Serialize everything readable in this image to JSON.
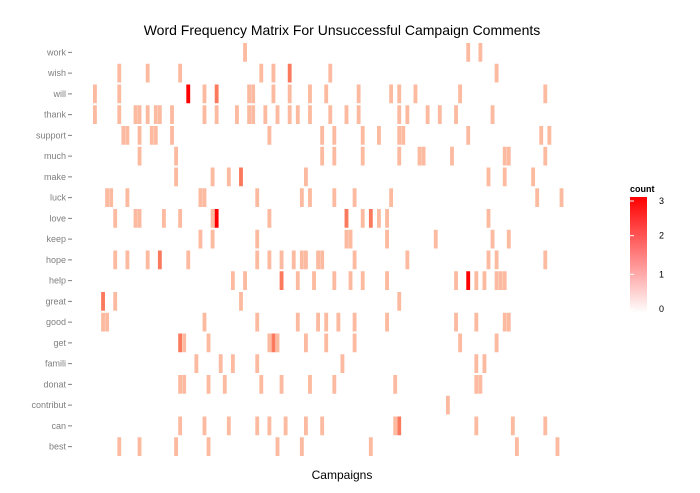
{
  "chart_data": {
    "type": "heatmap",
    "title": "Word Frequency Matrix For Unsuccessful Campaign Comments",
    "xlabel": "Campaigns",
    "ylabel": "",
    "rows": [
      "work",
      "wish",
      "will",
      "thank",
      "support",
      "much",
      "make",
      "luck",
      "love",
      "keep",
      "hope",
      "help",
      "great",
      "good",
      "get",
      "famili",
      "donat",
      "contribut",
      "can",
      "best"
    ],
    "n_campaigns": 122,
    "fill_scale": {
      "low": "#ffffff",
      "high": "#ff0000",
      "min": 0,
      "max": 3
    },
    "legend": {
      "title": "count",
      "ticks": [
        0,
        1,
        2,
        3
      ],
      "position": "right"
    },
    "cells": {
      "work": [
        [
          37,
          1
        ],
        [
          92,
          1
        ],
        [
          95,
          1
        ]
      ],
      "wish": [
        [
          6,
          1
        ],
        [
          13,
          1
        ],
        [
          21,
          1
        ],
        [
          41,
          1
        ],
        [
          44,
          1
        ],
        [
          48,
          2
        ],
        [
          58,
          1
        ],
        [
          99,
          1
        ]
      ],
      "will": [
        [
          0,
          1
        ],
        [
          6,
          1
        ],
        [
          23,
          3
        ],
        [
          27,
          1
        ],
        [
          30,
          2
        ],
        [
          38,
          1
        ],
        [
          39,
          1
        ],
        [
          44,
          1
        ],
        [
          48,
          1
        ],
        [
          53,
          1
        ],
        [
          57,
          1
        ],
        [
          65,
          1
        ],
        [
          73,
          1
        ],
        [
          75,
          1
        ],
        [
          79,
          1
        ],
        [
          90,
          1
        ],
        [
          111,
          1
        ]
      ],
      "thank": [
        [
          0,
          1
        ],
        [
          6,
          1
        ],
        [
          10,
          1
        ],
        [
          11,
          1
        ],
        [
          13,
          1
        ],
        [
          15,
          1
        ],
        [
          16,
          1
        ],
        [
          19,
          1
        ],
        [
          27,
          1
        ],
        [
          30,
          1
        ],
        [
          35,
          1
        ],
        [
          38,
          1
        ],
        [
          39,
          1
        ],
        [
          42,
          1
        ],
        [
          45,
          1
        ],
        [
          48,
          1
        ],
        [
          50,
          1
        ],
        [
          53,
          1
        ],
        [
          58,
          1
        ],
        [
          62,
          1
        ],
        [
          65,
          1
        ],
        [
          75,
          1
        ],
        [
          77,
          1
        ],
        [
          82,
          1
        ],
        [
          85,
          1
        ],
        [
          89,
          1
        ],
        [
          98,
          1
        ]
      ],
      "support": [
        [
          7,
          1
        ],
        [
          8,
          1
        ],
        [
          11,
          1
        ],
        [
          14,
          1
        ],
        [
          15,
          1
        ],
        [
          19,
          1
        ],
        [
          43,
          1
        ],
        [
          56,
          1
        ],
        [
          59,
          1
        ],
        [
          66,
          1
        ],
        [
          70,
          1
        ],
        [
          75,
          1
        ],
        [
          76,
          1
        ],
        [
          92,
          1
        ],
        [
          110,
          1
        ],
        [
          112,
          1
        ]
      ],
      "much": [
        [
          11,
          1
        ],
        [
          20,
          1
        ],
        [
          56,
          1
        ],
        [
          59,
          1
        ],
        [
          66,
          1
        ],
        [
          75,
          1
        ],
        [
          80,
          1
        ],
        [
          81,
          1
        ],
        [
          88,
          1
        ],
        [
          101,
          1
        ],
        [
          102,
          1
        ],
        [
          111,
          1
        ]
      ],
      "make": [
        [
          20,
          1
        ],
        [
          29,
          1
        ],
        [
          33,
          1
        ],
        [
          36,
          2
        ],
        [
          52,
          1
        ],
        [
          97,
          1
        ],
        [
          101,
          1
        ],
        [
          108,
          1
        ]
      ],
      "luck": [
        [
          3,
          1
        ],
        [
          4,
          1
        ],
        [
          8,
          1
        ],
        [
          26,
          1
        ],
        [
          27,
          1
        ],
        [
          40,
          1
        ],
        [
          51,
          1
        ],
        [
          53,
          1
        ],
        [
          59,
          1
        ],
        [
          64,
          1
        ],
        [
          73,
          1
        ],
        [
          109,
          1
        ],
        [
          115,
          1
        ]
      ],
      "love": [
        [
          5,
          1
        ],
        [
          10,
          1
        ],
        [
          11,
          1
        ],
        [
          17,
          1
        ],
        [
          21,
          1
        ],
        [
          29,
          1
        ],
        [
          30,
          3
        ],
        [
          43,
          1
        ],
        [
          62,
          2
        ],
        [
          66,
          1
        ],
        [
          68,
          2
        ],
        [
          70,
          1
        ],
        [
          72,
          1
        ],
        [
          97,
          1
        ]
      ],
      "keep": [
        [
          26,
          1
        ],
        [
          29,
          1
        ],
        [
          40,
          1
        ],
        [
          62,
          1
        ],
        [
          63,
          1
        ],
        [
          72,
          1
        ],
        [
          84,
          1
        ],
        [
          98,
          1
        ],
        [
          102,
          1
        ]
      ],
      "hope": [
        [
          5,
          1
        ],
        [
          8,
          1
        ],
        [
          13,
          1
        ],
        [
          16,
          2
        ],
        [
          23,
          1
        ],
        [
          40,
          1
        ],
        [
          43,
          1
        ],
        [
          46,
          1
        ],
        [
          49,
          1
        ],
        [
          51,
          1
        ],
        [
          52,
          1
        ],
        [
          55,
          1
        ],
        [
          56,
          1
        ],
        [
          64,
          1
        ],
        [
          77,
          1
        ],
        [
          97,
          1
        ],
        [
          99,
          1
        ],
        [
          111,
          1
        ]
      ],
      "help": [
        [
          34,
          1
        ],
        [
          37,
          1
        ],
        [
          46,
          2
        ],
        [
          50,
          1
        ],
        [
          54,
          1
        ],
        [
          59,
          1
        ],
        [
          63,
          1
        ],
        [
          66,
          1
        ],
        [
          72,
          1
        ],
        [
          89,
          1
        ],
        [
          92,
          3
        ],
        [
          94,
          1
        ],
        [
          96,
          1
        ],
        [
          99,
          1
        ],
        [
          100,
          1
        ],
        [
          101,
          1
        ]
      ],
      "great": [
        [
          2,
          2
        ],
        [
          5,
          1
        ],
        [
          36,
          1
        ],
        [
          75,
          1
        ]
      ],
      "good": [
        [
          2,
          1
        ],
        [
          3,
          1
        ],
        [
          27,
          1
        ],
        [
          40,
          1
        ],
        [
          50,
          1
        ],
        [
          55,
          1
        ],
        [
          57,
          1
        ],
        [
          60,
          1
        ],
        [
          64,
          1
        ],
        [
          72,
          1
        ],
        [
          89,
          1
        ],
        [
          94,
          1
        ],
        [
          101,
          1
        ],
        [
          102,
          1
        ]
      ],
      "get": [
        [
          21,
          2
        ],
        [
          22,
          1
        ],
        [
          28,
          1
        ],
        [
          43,
          1
        ],
        [
          44,
          2
        ],
        [
          45,
          1
        ],
        [
          52,
          1
        ],
        [
          57,
          1
        ],
        [
          64,
          1
        ],
        [
          90,
          1
        ],
        [
          99,
          1
        ]
      ],
      "famili": [
        [
          25,
          1
        ],
        [
          31,
          1
        ],
        [
          34,
          1
        ],
        [
          40,
          1
        ],
        [
          61,
          1
        ],
        [
          94,
          1
        ],
        [
          96,
          1
        ]
      ],
      "donat": [
        [
          21,
          1
        ],
        [
          22,
          1
        ],
        [
          28,
          1
        ],
        [
          32,
          1
        ],
        [
          41,
          1
        ],
        [
          46,
          1
        ],
        [
          53,
          1
        ],
        [
          59,
          1
        ],
        [
          74,
          1
        ],
        [
          94,
          1
        ],
        [
          95,
          1
        ]
      ],
      "contribut": [
        [
          87,
          1
        ]
      ],
      "can": [
        [
          21,
          1
        ],
        [
          27,
          1
        ],
        [
          33,
          1
        ],
        [
          40,
          1
        ],
        [
          43,
          1
        ],
        [
          47,
          1
        ],
        [
          52,
          1
        ],
        [
          56,
          1
        ],
        [
          74,
          1
        ],
        [
          75,
          2
        ],
        [
          94,
          1
        ],
        [
          103,
          1
        ],
        [
          111,
          1
        ]
      ],
      "best": [
        [
          6,
          1
        ],
        [
          11,
          1
        ],
        [
          20,
          1
        ],
        [
          28,
          1
        ],
        [
          45,
          1
        ],
        [
          51,
          1
        ],
        [
          68,
          1
        ],
        [
          104,
          1
        ],
        [
          114,
          1
        ]
      ]
    }
  }
}
